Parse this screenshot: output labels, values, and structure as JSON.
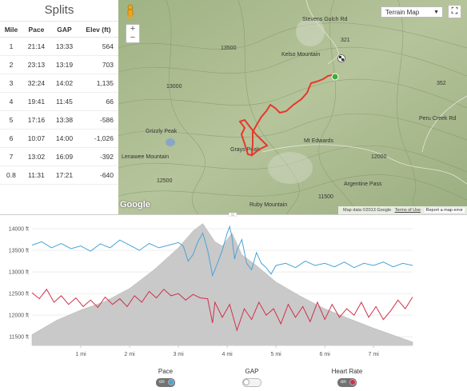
{
  "splits": {
    "title": "Splits",
    "columns": [
      "Mile",
      "Pace",
      "GAP",
      "Elev (ft)"
    ],
    "rows": [
      {
        "mile": "1",
        "pace": "21:14",
        "gap": "13:33",
        "elev": "564"
      },
      {
        "mile": "2",
        "pace": "23:13",
        "gap": "13:19",
        "elev": "703"
      },
      {
        "mile": "3",
        "pace": "32:24",
        "gap": "14:02",
        "elev": "1,135"
      },
      {
        "mile": "4",
        "pace": "19:41",
        "gap": "11:45",
        "elev": "66"
      },
      {
        "mile": "5",
        "pace": "17:16",
        "gap": "13:38",
        "elev": "-586"
      },
      {
        "mile": "6",
        "pace": "10:07",
        "gap": "14:00",
        "elev": "-1,026"
      },
      {
        "mile": "7",
        "pace": "13:02",
        "gap": "16:09",
        "elev": "-392"
      },
      {
        "mile": "0.8",
        "pace": "11:31",
        "gap": "17:21",
        "elev": "-640"
      }
    ]
  },
  "map": {
    "type_select": "Terrain Map",
    "zoom_in": "+",
    "zoom_out": "−",
    "google": "Google",
    "attribution": "Map data ©2013 Google",
    "terms": "Terms of Use",
    "report": "Report a map error",
    "labels": [
      "Kelso Mountain",
      "Grizzly Peak",
      "Lenawee Mountain",
      "Grays Peak",
      "Mt Edwards",
      "Argentine Pass",
      "Ruby Mountain",
      "Stevens Gulch Rd",
      "Peru Creek Rd",
      "321",
      "352",
      "13500",
      "13000",
      "12000",
      "12500",
      "11500"
    ],
    "colors": {
      "route": "#e8372c",
      "start": "#3fae3a"
    }
  },
  "chart_data": {
    "type": "line",
    "x_ticks": [
      "1 mi",
      "2 mi",
      "3 mi",
      "4 mi",
      "5 mi",
      "6 mi",
      "7 mi"
    ],
    "y_ticks": [
      "11500 ft",
      "12000 ft",
      "12500 ft",
      "13000 ft",
      "13500 ft",
      "14000 ft"
    ],
    "xlim": [
      0,
      7.8
    ],
    "ylim": [
      11300,
      14150
    ],
    "elevation": {
      "x": [
        0,
        0.5,
        1,
        1.5,
        2,
        2.5,
        3,
        3.3,
        3.5,
        3.75,
        3.9,
        4.1,
        4.3,
        4.6,
        5,
        5.5,
        6,
        6.5,
        7,
        7.5,
        7.8
      ],
      "y": [
        11550,
        11880,
        12120,
        12320,
        12620,
        13050,
        13560,
        13950,
        14120,
        13700,
        13600,
        13900,
        13400,
        13150,
        12770,
        12440,
        12150,
        11920,
        11700,
        11500,
        11380
      ]
    },
    "series": [
      {
        "name": "Pace",
        "color": "#4aa3d6",
        "x": [
          0,
          0.2,
          0.4,
          0.6,
          0.8,
          1.0,
          1.2,
          1.4,
          1.6,
          1.8,
          2.0,
          2.2,
          2.4,
          2.6,
          2.8,
          3.0,
          3.1,
          3.2,
          3.3,
          3.4,
          3.5,
          3.6,
          3.7,
          3.8,
          3.9,
          4.0,
          4.05,
          4.1,
          4.15,
          4.2,
          4.3,
          4.4,
          4.5,
          4.6,
          4.7,
          4.8,
          4.9,
          5.0,
          5.2,
          5.4,
          5.6,
          5.8,
          6.0,
          6.2,
          6.4,
          6.6,
          6.8,
          7.0,
          7.2,
          7.4,
          7.6,
          7.8
        ],
        "y": [
          13620,
          13700,
          13560,
          13660,
          13540,
          13600,
          13480,
          13650,
          13560,
          13740,
          13620,
          13500,
          13660,
          13560,
          13620,
          13680,
          13600,
          13250,
          13400,
          13700,
          13900,
          13500,
          12920,
          13200,
          13500,
          13900,
          14050,
          13800,
          13300,
          13500,
          13750,
          13200,
          13050,
          13450,
          13200,
          13100,
          12950,
          13150,
          13200,
          13100,
          13250,
          13150,
          13200,
          13120,
          13230,
          13100,
          13200,
          13150,
          13230,
          13120,
          13200,
          13150
        ]
      },
      {
        "name": "GAP",
        "color": "#999999",
        "x": [],
        "y": []
      },
      {
        "name": "Heart Rate",
        "color": "#d0314a",
        "x": [
          0,
          0.15,
          0.3,
          0.45,
          0.6,
          0.75,
          0.9,
          1.05,
          1.2,
          1.35,
          1.5,
          1.65,
          1.8,
          1.95,
          2.1,
          2.25,
          2.4,
          2.55,
          2.7,
          2.85,
          3.0,
          3.15,
          3.3,
          3.45,
          3.6,
          3.7,
          3.75,
          3.9,
          4.05,
          4.2,
          4.35,
          4.5,
          4.65,
          4.8,
          4.95,
          5.1,
          5.25,
          5.4,
          5.55,
          5.7,
          5.85,
          6.0,
          6.15,
          6.3,
          6.45,
          6.6,
          6.75,
          6.9,
          7.05,
          7.2,
          7.35,
          7.5,
          7.65,
          7.8
        ],
        "y": [
          12520,
          12380,
          12600,
          12300,
          12450,
          12250,
          12400,
          12200,
          12350,
          12180,
          12420,
          12250,
          12380,
          12200,
          12450,
          12300,
          12550,
          12400,
          12600,
          12450,
          12500,
          12350,
          12480,
          12400,
          12380,
          11820,
          12300,
          11950,
          12250,
          11650,
          12150,
          11900,
          12300,
          12000,
          12150,
          11800,
          12250,
          11950,
          12200,
          11850,
          12300,
          11900,
          12250,
          11950,
          12150,
          12000,
          12300,
          11950,
          12200,
          11900,
          12100,
          12350,
          12150,
          12420
        ]
      }
    ]
  },
  "legend": [
    {
      "label": "Pace",
      "toggle": "on",
      "state": "on",
      "knob_color": "#4aa3d6"
    },
    {
      "label": "GAP",
      "toggle": "",
      "state": "off",
      "knob_color": "#ffffff"
    },
    {
      "label": "Heart Rate",
      "toggle": "on",
      "state": "on",
      "knob_color": "#d0314a"
    }
  ]
}
